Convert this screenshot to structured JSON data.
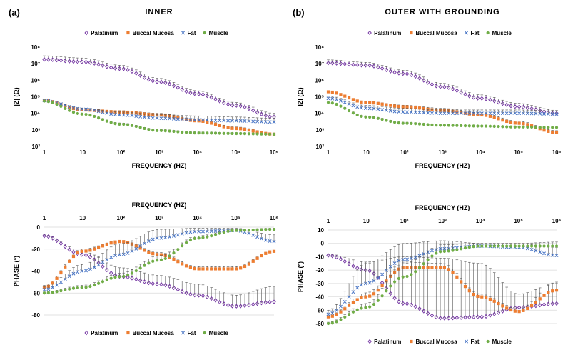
{
  "colors": {
    "Palatinum": "#7030a0",
    "Buccal Mucosa": "#ed7d31",
    "Fat": "#4472c4",
    "Muscle": "#70ad47",
    "error_bar": "#555555"
  },
  "legend_markers": {
    "Palatinum": "diamond",
    "Buccal Mucosa": "square",
    "Fat": "x",
    "Muscle": "circle"
  },
  "chart_data": [
    {
      "panel_label": "(a)",
      "title": "INNER",
      "type": "scatter",
      "xlabel": "FREQUENCY (HZ)",
      "ylabel": "|Z| (Ω)",
      "x_scale": "log",
      "y_scale": "log",
      "xlim": [
        1,
        1000000
      ],
      "ylim": [
        100,
        100000000
      ],
      "x_ticks": [
        "1",
        "10",
        "10²",
        "10³",
        "10⁴",
        "10⁵",
        "10⁶"
      ],
      "y_ticks": [
        "10²",
        "10³",
        "10⁴",
        "10⁵",
        "10⁶",
        "10⁷",
        "10⁸"
      ],
      "legend_position": "top",
      "error_bars": "upper",
      "x": [
        1,
        10,
        100,
        1000,
        10000,
        100000,
        1000000
      ],
      "series": [
        {
          "name": "Palatinum",
          "values": [
            18000000,
            13000000,
            5000000,
            800000,
            150000,
            30000,
            6000
          ],
          "error": [
            12000000,
            9000000,
            3000000,
            500000,
            80000,
            15000,
            4000
          ]
        },
        {
          "name": "Buccal Mucosa",
          "values": [
            60000,
            16000,
            12000,
            8000,
            3500,
            1200,
            550
          ],
          "error": [
            5000,
            2000,
            2500,
            2000,
            1000,
            300,
            100
          ]
        },
        {
          "name": "Fat",
          "values": [
            60000,
            18000,
            8000,
            5000,
            4000,
            3500,
            3000
          ],
          "error": [
            6000,
            3000,
            4000,
            3500,
            3000,
            2500,
            2000
          ]
        },
        {
          "name": "Muscle",
          "values": [
            55000,
            9000,
            2200,
            900,
            650,
            600,
            550
          ],
          "error": [
            4000,
            1000,
            400,
            150,
            100,
            80,
            60
          ]
        }
      ]
    },
    {
      "panel_label": "(b)",
      "title": "OUTER WITH GROUNDING",
      "type": "scatter",
      "xlabel": "FREQUENCY (HZ)",
      "ylabel": "IZI (Ω)",
      "x_scale": "log",
      "y_scale": "log",
      "xlim": [
        1,
        1000000
      ],
      "ylim": [
        100,
        100000000
      ],
      "x_ticks": [
        "1",
        "10",
        "10²",
        "10³",
        "10⁴",
        "10⁵",
        "10⁶"
      ],
      "y_ticks": [
        "10²",
        "10³",
        "10⁴",
        "10⁵",
        "10⁶",
        "10⁷",
        "10⁸"
      ],
      "legend_position": "top",
      "error_bars": "upper",
      "x": [
        1,
        10,
        100,
        1000,
        10000,
        100000,
        1000000
      ],
      "series": [
        {
          "name": "Palatinum",
          "values": [
            11000000,
            8000000,
            2500000,
            400000,
            80000,
            25000,
            10000
          ],
          "error": [
            6000000,
            4000000,
            1500000,
            250000,
            50000,
            15000,
            5000
          ]
        },
        {
          "name": "Buccal Mucosa",
          "values": [
            200000,
            45000,
            25000,
            15000,
            8000,
            2500,
            700
          ],
          "error": [
            20000,
            8000,
            6000,
            5000,
            3000,
            800,
            200
          ]
        },
        {
          "name": "Fat",
          "values": [
            80000,
            20000,
            12000,
            10000,
            10000,
            10000,
            9000
          ],
          "error": [
            30000,
            10000,
            8000,
            6000,
            6000,
            6000,
            5000
          ]
        },
        {
          "name": "Muscle",
          "values": [
            45000,
            6000,
            2500,
            1900,
            1700,
            1500,
            1400
          ],
          "error": [
            5000,
            1000,
            400,
            200,
            150,
            150,
            150
          ]
        }
      ]
    },
    {
      "type": "scatter",
      "xlabel": "FREQUENCY (HZ)",
      "ylabel": "PHASE (°)",
      "x_scale": "log",
      "x_axis_position": "top",
      "xlim": [
        1,
        1000000
      ],
      "ylim": [
        -80,
        0
      ],
      "x_ticks": [
        "1",
        "10",
        "10²",
        "10³",
        "10⁴",
        "10⁵",
        "10⁶"
      ],
      "y_ticks": [
        "0",
        "-20",
        "-40",
        "-60",
        "-80"
      ],
      "legend_position": "bottom",
      "error_bars": "upper",
      "x": [
        1,
        10,
        100,
        1000,
        10000,
        100000,
        1000000
      ],
      "series": [
        {
          "name": "Palatinum",
          "values": [
            -8,
            -25,
            -45,
            -52,
            -62,
            -72,
            -68
          ],
          "error": [
            1,
            3,
            8,
            8,
            10,
            10,
            14
          ]
        },
        {
          "name": "Buccal Mucosa",
          "values": [
            -55,
            -22,
            -13,
            -25,
            -38,
            -38,
            -22
          ],
          "error": [
            2,
            2,
            1,
            2,
            2,
            2,
            1
          ]
        },
        {
          "name": "Fat",
          "values": [
            -57,
            -40,
            -25,
            -10,
            -4,
            -3,
            -13
          ],
          "error": [
            3,
            6,
            10,
            8,
            3,
            2,
            6
          ]
        },
        {
          "name": "Muscle",
          "values": [
            -60,
            -55,
            -45,
            -30,
            -10,
            -3,
            -2
          ],
          "error": [
            1,
            2,
            3,
            4,
            2,
            1,
            1
          ]
        }
      ]
    },
    {
      "type": "scatter",
      "xlabel": "FREQUENCY (HZ)",
      "ylabel": "PHASE (°)",
      "x_scale": "log",
      "x_axis_position": "top",
      "xlim": [
        1,
        1000000
      ],
      "ylim": [
        -60,
        10
      ],
      "x_ticks": [
        "1",
        "10",
        "10²",
        "10³",
        "10⁴",
        "10⁵",
        "10⁶"
      ],
      "y_ticks": [
        "10",
        "0",
        "-10",
        "-20",
        "-30",
        "-40",
        "-50",
        "-60"
      ],
      "legend_position": "bottom",
      "error_bars": "upper",
      "x": [
        1,
        10,
        100,
        1000,
        10000,
        100000,
        1000000
      ],
      "series": [
        {
          "name": "Palatinum",
          "values": [
            -9,
            -20,
            -45,
            -56,
            -55,
            -48,
            -45
          ],
          "error": [
            1,
            6,
            35,
            45,
            40,
            10,
            15
          ]
        },
        {
          "name": "Buccal Mucosa",
          "values": [
            -55,
            -40,
            -18,
            -18,
            -40,
            -51,
            -35
          ],
          "error": [
            1,
            3,
            4,
            3,
            2,
            2,
            6
          ]
        },
        {
          "name": "Fat",
          "values": [
            -53,
            -30,
            -12,
            -4,
            -2,
            -3,
            -9
          ],
          "error": [
            3,
            15,
            12,
            6,
            2,
            3,
            6
          ]
        },
        {
          "name": "Muscle",
          "values": [
            -60,
            -48,
            -25,
            -6,
            -2,
            -2,
            -2
          ],
          "error": [
            1,
            3,
            10,
            5,
            2,
            2,
            3
          ]
        }
      ]
    }
  ]
}
